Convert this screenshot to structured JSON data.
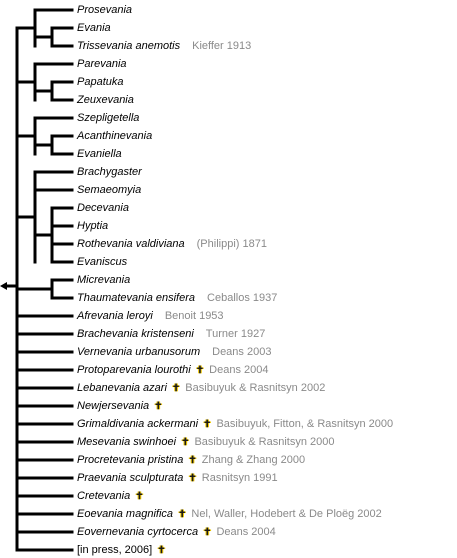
{
  "leaves": [
    {
      "name": "Prosevania",
      "author": "",
      "extinct": false,
      "italic": true
    },
    {
      "name": "Evania",
      "author": "",
      "extinct": false,
      "italic": true
    },
    {
      "name": "Trissevania anemotis",
      "author": "Kieffer 1913",
      "extinct": false,
      "italic": true
    },
    {
      "name": "Parevania",
      "author": "",
      "extinct": false,
      "italic": true
    },
    {
      "name": "Papatuka",
      "author": "",
      "extinct": false,
      "italic": true
    },
    {
      "name": "Zeuxevania",
      "author": "",
      "extinct": false,
      "italic": true
    },
    {
      "name": "Szepligetella",
      "author": "",
      "extinct": false,
      "italic": true
    },
    {
      "name": "Acanthinevania",
      "author": "",
      "extinct": false,
      "italic": true
    },
    {
      "name": "Evaniella",
      "author": "",
      "extinct": false,
      "italic": true
    },
    {
      "name": "Brachygaster",
      "author": "",
      "extinct": false,
      "italic": true
    },
    {
      "name": "Semaeomyia",
      "author": "",
      "extinct": false,
      "italic": true
    },
    {
      "name": "Decevania",
      "author": "",
      "extinct": false,
      "italic": true
    },
    {
      "name": "Hyptia",
      "author": "",
      "extinct": false,
      "italic": true
    },
    {
      "name": "Rothevania valdiviana",
      "author": "(Philippi) 1871",
      "extinct": false,
      "italic": true
    },
    {
      "name": "Evaniscus",
      "author": "",
      "extinct": false,
      "italic": true
    },
    {
      "name": "Micrevania",
      "author": "",
      "extinct": false,
      "italic": true
    },
    {
      "name": "Thaumatevania ensifera",
      "author": "Ceballos 1937",
      "extinct": false,
      "italic": true
    },
    {
      "name": "Afrevania leroyi",
      "author": "Benoit 1953",
      "extinct": false,
      "italic": true
    },
    {
      "name": "Brachevania kristenseni",
      "author": "Turner 1927",
      "extinct": false,
      "italic": true
    },
    {
      "name": "Vernevania urbanusorum",
      "author": "Deans 2003",
      "extinct": false,
      "italic": true
    },
    {
      "name": "Protoparevania lourothi",
      "author": "Deans 2004",
      "extinct": true,
      "italic": true
    },
    {
      "name": "Lebanevania azari",
      "author": "Basibuyuk & Rasnitsyn 2002",
      "extinct": true,
      "italic": true
    },
    {
      "name": "Newjersevania",
      "author": "",
      "extinct": true,
      "italic": true
    },
    {
      "name": "Grimaldivania ackermani",
      "author": "Basibuyuk, Fitton, & Rasnitsyn 2000",
      "extinct": true,
      "italic": true
    },
    {
      "name": "Mesevania swinhoei",
      "author": "Basibuyuk & Rasnitsyn 2000",
      "extinct": true,
      "italic": true
    },
    {
      "name": "Procretevania pristina",
      "author": "Zhang & Zhang 2000",
      "extinct": true,
      "italic": true
    },
    {
      "name": "Praevania sculpturata",
      "author": "Rasnitsyn 1991",
      "extinct": true,
      "italic": true
    },
    {
      "name": "Cretevania",
      "author": "",
      "extinct": true,
      "italic": true
    },
    {
      "name": "Eoevania magnifica",
      "author": "Nel, Waller, Hodebert & De Ploëg 2002",
      "extinct": true,
      "italic": true
    },
    {
      "name": "Eovernevania cyrtocerca",
      "author": "Deans 2004",
      "extinct": true,
      "italic": true
    },
    {
      "name": "[in press, 2006]",
      "author": "",
      "extinct": true,
      "italic": false
    }
  ],
  "extinct_symbol": "✝",
  "colors": {
    "line": "#000000",
    "author": "#8a8a8a",
    "cross_glow": "#f0c800"
  }
}
